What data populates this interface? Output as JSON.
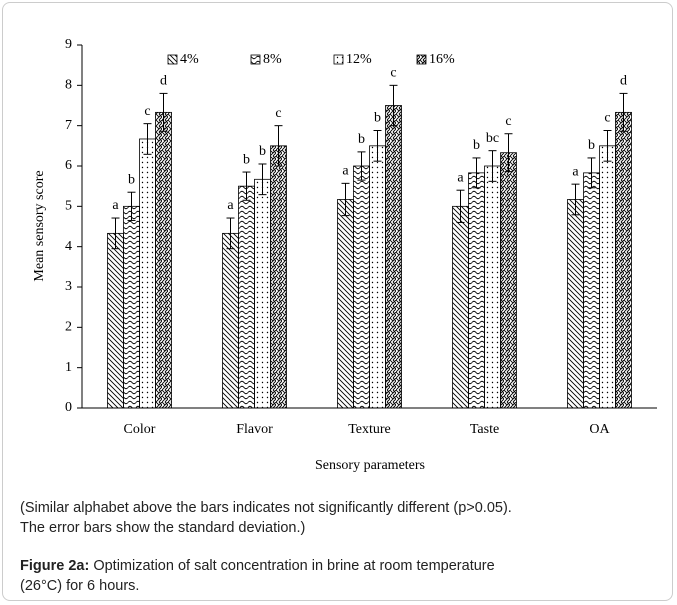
{
  "chart_data": {
    "type": "bar",
    "ylabel": "Mean sensory score",
    "xlabel": "Sensory parameters",
    "categories": [
      "Color",
      "Flavor",
      "Texture",
      "Taste",
      "OA"
    ],
    "ylim": [
      0,
      9
    ],
    "yticks": [
      0,
      1,
      2,
      3,
      4,
      5,
      6,
      7,
      8,
      9
    ],
    "series": [
      {
        "name": "4%",
        "color": "#000000",
        "values": [
          4.33,
          4.33,
          5.17,
          5.0,
          5.17
        ],
        "errors": [
          0.38,
          0.38,
          0.4,
          0.4,
          0.38
        ],
        "labels": [
          "a",
          "a",
          "a",
          "a",
          "a"
        ]
      },
      {
        "name": "8%",
        "color": "#000000",
        "values": [
          5.0,
          5.5,
          6.0,
          5.83,
          5.83
        ],
        "errors": [
          0.35,
          0.35,
          0.35,
          0.37,
          0.37
        ],
        "labels": [
          "b",
          "b",
          "b",
          "b",
          "b"
        ]
      },
      {
        "name": "12%",
        "color": "#000000",
        "values": [
          6.67,
          5.67,
          6.5,
          6.0,
          6.5
        ],
        "errors": [
          0.38,
          0.38,
          0.38,
          0.38,
          0.38
        ],
        "labels": [
          "c",
          "b",
          "b",
          "bc",
          "c"
        ]
      },
      {
        "name": "16%",
        "color": "#000000",
        "values": [
          7.33,
          6.5,
          7.5,
          6.33,
          7.33
        ],
        "errors": [
          0.47,
          0.5,
          0.5,
          0.47,
          0.47
        ],
        "labels": [
          "d",
          "c",
          "c",
          "c",
          "d"
        ]
      }
    ]
  },
  "note": [
    "(Similar alphabet above the bars indicates not significantly different (p>0.05).",
    "The error bars show the standard deviation.)"
  ],
  "caption_label": "Figure 2a:",
  "caption": [
    "Optimization of salt concentration in brine at room temperature",
    "(26°C) for 6 hours."
  ]
}
